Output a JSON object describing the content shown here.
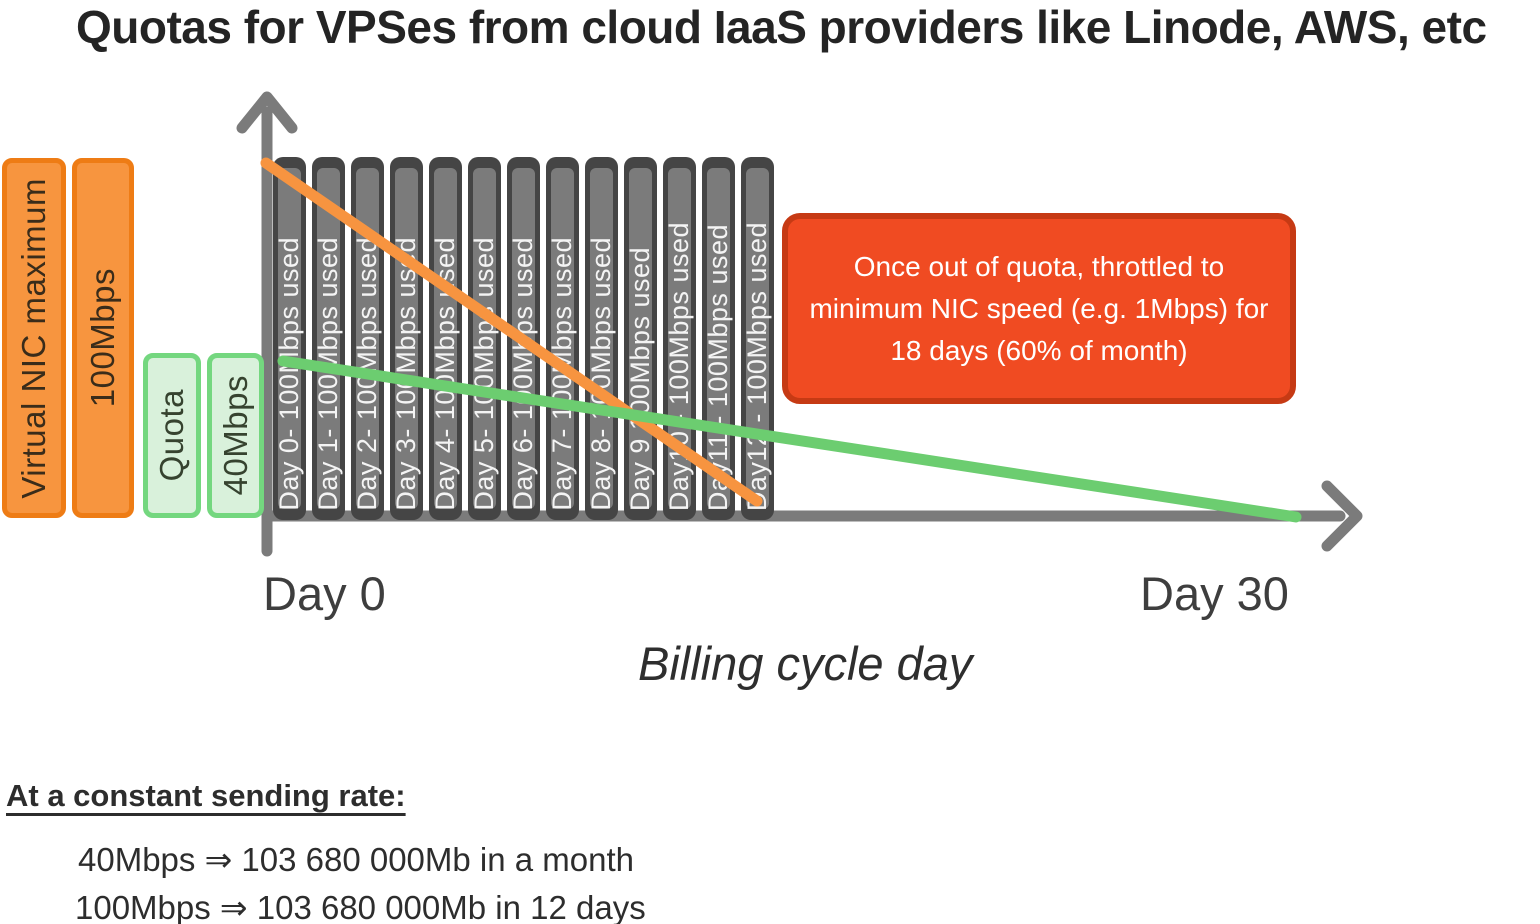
{
  "title": "Quotas for VPSes from cloud IaaS providers like Linode, AWS, etc",
  "colors": {
    "orange-fill": "#F7953F",
    "orange-border": "#EE7C15",
    "orange-line": "#F79440",
    "green-fill": "#D9F1DB",
    "green-border": "#74D77F",
    "green-line": "#6CCD70",
    "bar-outer": "#454545",
    "bar-inner": "#7B7B7B",
    "red-fill": "#F04B22",
    "red-border": "#C63A14",
    "axis-gray": "#7B7B7B"
  },
  "nic_max": {
    "label": "Virtual NIC maximum",
    "value": "100Mbps"
  },
  "quota": {
    "label": "Quota",
    "value": "40Mbps"
  },
  "bars": {
    "labels": [
      "Day 0- 100Mbps used",
      "Day 1- 100Mbps used",
      "Day 2- 100Mbps used",
      "Day 3- 100Mbps used",
      "Day 4- 100Mbps used",
      "Day 5- 100Mbps used",
      "Day 6- 100Mbps used",
      "Day 7- 100Mbps used",
      "Day 8- 100Mbps used",
      "Day 9 100Mbps used",
      "Day10 - 100Mbps used",
      "Day11 - 100Mbps used",
      "Day12 - 100Mbps used"
    ]
  },
  "callout": {
    "lines": [
      "Once out of quota, throttled to",
      "minimum NIC speed (e.g. 1Mbps) for",
      "18 days (60% of month)"
    ]
  },
  "x_axis": {
    "start_label": "Day 0",
    "end_label": "Day 30",
    "title": "Billing cycle day"
  },
  "lines": {
    "orange_usage_line": {
      "color": "#F79440",
      "from_day": 0,
      "to_day": 12
    },
    "green_usage_line": {
      "color": "#6CCD70",
      "from_day": 0,
      "to_day": 30
    }
  },
  "notes": {
    "heading": "At a constant sending rate:",
    "lines": [
      "40Mbps ⇒ 103 680 000Mb in a month",
      "100Mbps ⇒ 103 680 000Mb in 12 days"
    ]
  }
}
